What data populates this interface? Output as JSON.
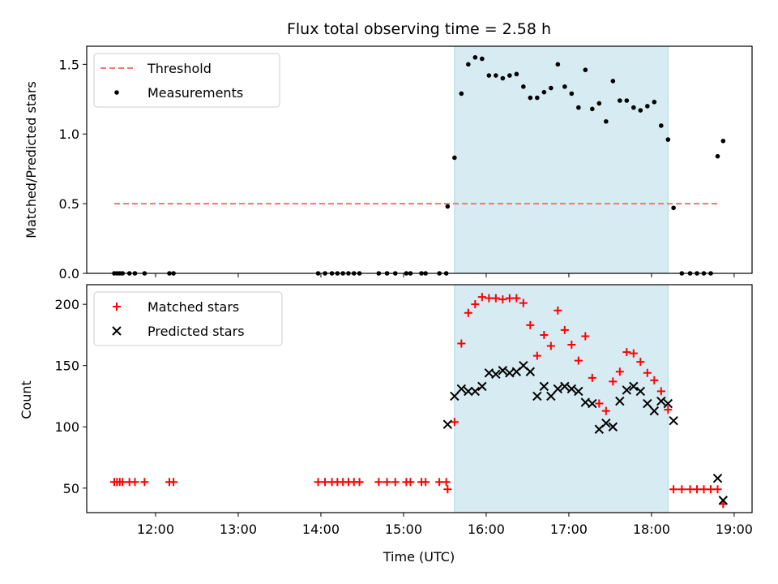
{
  "chart_data": [
    {
      "type": "scatter",
      "title": "Flux total observing time = 2.58 h",
      "xlabel": "",
      "ylabel": "Matched/Predicted stars",
      "ylim": [
        0,
        1.63
      ],
      "xlim": [
        "11:10",
        "19:13"
      ],
      "grid": false,
      "legend_position": "top-left",
      "yticks": [
        "0.0",
        "0.5",
        "1.0",
        "1.5"
      ],
      "shaded_region": {
        "x0": "15:37",
        "x1": "18:12",
        "color": "#add8e6"
      },
      "series": [
        {
          "name": "Threshold",
          "kind": "dashed-line",
          "color": "#ff7070",
          "points": [
            [
              "11:30",
              0.5
            ],
            [
              "18:50",
              0.5
            ]
          ]
        },
        {
          "name": "Measurements",
          "kind": "points",
          "color": "#000000",
          "points": [
            [
              "11:30",
              0
            ],
            [
              "11:32",
              0
            ],
            [
              "11:34",
              0
            ],
            [
              "11:36",
              0
            ],
            [
              "11:41",
              0
            ],
            [
              "11:45",
              0
            ],
            [
              "11:52",
              0
            ],
            [
              "12:10",
              0
            ],
            [
              "12:13",
              0
            ],
            [
              "13:58",
              0
            ],
            [
              "14:03",
              0
            ],
            [
              "14:08",
              0
            ],
            [
              "14:12",
              0
            ],
            [
              "14:16",
              0
            ],
            [
              "14:20",
              0
            ],
            [
              "14:24",
              0
            ],
            [
              "14:28",
              0
            ],
            [
              "14:42",
              0
            ],
            [
              "14:48",
              0
            ],
            [
              "14:54",
              0
            ],
            [
              "15:02",
              0
            ],
            [
              "15:05",
              0
            ],
            [
              "15:13",
              0
            ],
            [
              "15:16",
              0
            ],
            [
              "15:26",
              0
            ],
            [
              "15:31",
              0
            ],
            [
              "15:32",
              0.48
            ],
            [
              "15:37",
              0.83
            ],
            [
              "15:42",
              1.29
            ],
            [
              "15:47",
              1.5
            ],
            [
              "15:52",
              1.55
            ],
            [
              "15:57",
              1.54
            ],
            [
              "16:02",
              1.42
            ],
            [
              "16:07",
              1.42
            ],
            [
              "16:12",
              1.4
            ],
            [
              "16:17",
              1.42
            ],
            [
              "16:22",
              1.43
            ],
            [
              "16:27",
              1.34
            ],
            [
              "16:32",
              1.26
            ],
            [
              "16:37",
              1.26
            ],
            [
              "16:42",
              1.3
            ],
            [
              "16:47",
              1.33
            ],
            [
              "16:52",
              1.5
            ],
            [
              "16:57",
              1.34
            ],
            [
              "17:02",
              1.29
            ],
            [
              "17:07",
              1.19
            ],
            [
              "17:12",
              1.46
            ],
            [
              "17:17",
              1.18
            ],
            [
              "17:22",
              1.22
            ],
            [
              "17:27",
              1.09
            ],
            [
              "17:32",
              1.38
            ],
            [
              "17:37",
              1.24
            ],
            [
              "17:42",
              1.24
            ],
            [
              "17:47",
              1.19
            ],
            [
              "17:52",
              1.17
            ],
            [
              "17:57",
              1.2
            ],
            [
              "18:02",
              1.23
            ],
            [
              "18:07",
              1.06
            ],
            [
              "18:12",
              0.96
            ],
            [
              "18:16",
              0.47
            ],
            [
              "18:22",
              0
            ],
            [
              "18:28",
              0
            ],
            [
              "18:33",
              0
            ],
            [
              "18:38",
              0
            ],
            [
              "18:43",
              0
            ],
            [
              "18:48",
              0.84
            ],
            [
              "18:52",
              0.95
            ]
          ]
        }
      ]
    },
    {
      "type": "scatter",
      "title": "",
      "xlabel": "Time (UTC)",
      "ylabel": "Count",
      "ylim": [
        30,
        216
      ],
      "xlim": [
        "11:10",
        "19:13"
      ],
      "grid": false,
      "legend_position": "top-left",
      "yticks": [
        "50",
        "100",
        "150",
        "200"
      ],
      "xticks": [
        "12:00",
        "13:00",
        "14:00",
        "15:00",
        "16:00",
        "17:00",
        "18:00",
        "19:00"
      ],
      "shaded_region": {
        "x0": "15:37",
        "x1": "18:12",
        "color": "#add8e6"
      },
      "series": [
        {
          "name": "Matched stars",
          "marker": "+",
          "color": "#ff0000",
          "points": [
            [
              "11:30",
              55
            ],
            [
              "11:32",
              55
            ],
            [
              "11:34",
              55
            ],
            [
              "11:36",
              55
            ],
            [
              "11:41",
              55
            ],
            [
              "11:45",
              55
            ],
            [
              "11:52",
              55
            ],
            [
              "12:10",
              55
            ],
            [
              "12:13",
              55
            ],
            [
              "13:58",
              55
            ],
            [
              "14:03",
              55
            ],
            [
              "14:08",
              55
            ],
            [
              "14:12",
              55
            ],
            [
              "14:16",
              55
            ],
            [
              "14:20",
              55
            ],
            [
              "14:24",
              55
            ],
            [
              "14:28",
              55
            ],
            [
              "14:42",
              55
            ],
            [
              "14:48",
              55
            ],
            [
              "14:54",
              55
            ],
            [
              "15:02",
              55
            ],
            [
              "15:05",
              55
            ],
            [
              "15:13",
              55
            ],
            [
              "15:16",
              55
            ],
            [
              "15:26",
              55
            ],
            [
              "15:31",
              55
            ],
            [
              "15:32",
              49
            ],
            [
              "15:37",
              104
            ],
            [
              "15:42",
              168
            ],
            [
              "15:47",
              193
            ],
            [
              "15:52",
              200
            ],
            [
              "15:57",
              206
            ],
            [
              "16:02",
              205
            ],
            [
              "16:07",
              205
            ],
            [
              "16:12",
              204
            ],
            [
              "16:17",
              205
            ],
            [
              "16:22",
              205
            ],
            [
              "16:27",
              201
            ],
            [
              "16:32",
              183
            ],
            [
              "16:37",
              158
            ],
            [
              "16:42",
              175
            ],
            [
              "16:47",
              166
            ],
            [
              "16:52",
              195
            ],
            [
              "16:57",
              179
            ],
            [
              "17:02",
              167
            ],
            [
              "17:07",
              154
            ],
            [
              "17:12",
              174
            ],
            [
              "17:17",
              140
            ],
            [
              "17:22",
              119
            ],
            [
              "17:27",
              113
            ],
            [
              "17:32",
              137
            ],
            [
              "17:37",
              145
            ],
            [
              "17:42",
              161
            ],
            [
              "17:47",
              160
            ],
            [
              "17:52",
              153
            ],
            [
              "17:57",
              144
            ],
            [
              "18:02",
              138
            ],
            [
              "18:07",
              129
            ],
            [
              "18:12",
              114
            ],
            [
              "18:16",
              49
            ],
            [
              "18:22",
              49
            ],
            [
              "18:28",
              49
            ],
            [
              "18:33",
              49
            ],
            [
              "18:38",
              49
            ],
            [
              "18:43",
              49
            ],
            [
              "18:48",
              49
            ],
            [
              "18:52",
              37
            ]
          ]
        },
        {
          "name": "Predicted stars",
          "marker": "x",
          "color": "#000000",
          "points": [
            [
              "15:32",
              102
            ],
            [
              "15:37",
              125
            ],
            [
              "15:42",
              131
            ],
            [
              "15:47",
              129
            ],
            [
              "15:52",
              129
            ],
            [
              "15:57",
              133
            ],
            [
              "16:02",
              144
            ],
            [
              "16:07",
              143
            ],
            [
              "16:12",
              146
            ],
            [
              "16:17",
              144
            ],
            [
              "16:22",
              145
            ],
            [
              "16:27",
              150
            ],
            [
              "16:32",
              145
            ],
            [
              "16:37",
              125
            ],
            [
              "16:42",
              133
            ],
            [
              "16:47",
              125
            ],
            [
              "16:52",
              131
            ],
            [
              "16:57",
              133
            ],
            [
              "17:02",
              131
            ],
            [
              "17:07",
              129
            ],
            [
              "17:12",
              120
            ],
            [
              "17:17",
              119
            ],
            [
              "17:22",
              98
            ],
            [
              "17:27",
              103
            ],
            [
              "17:32",
              100
            ],
            [
              "17:37",
              121
            ],
            [
              "17:42",
              130
            ],
            [
              "17:47",
              133
            ],
            [
              "17:52",
              129
            ],
            [
              "17:57",
              119
            ],
            [
              "18:02",
              113
            ],
            [
              "18:07",
              121
            ],
            [
              "18:12",
              119
            ],
            [
              "18:16",
              105
            ],
            [
              "18:48",
              58
            ],
            [
              "18:52",
              40
            ]
          ]
        }
      ]
    }
  ]
}
